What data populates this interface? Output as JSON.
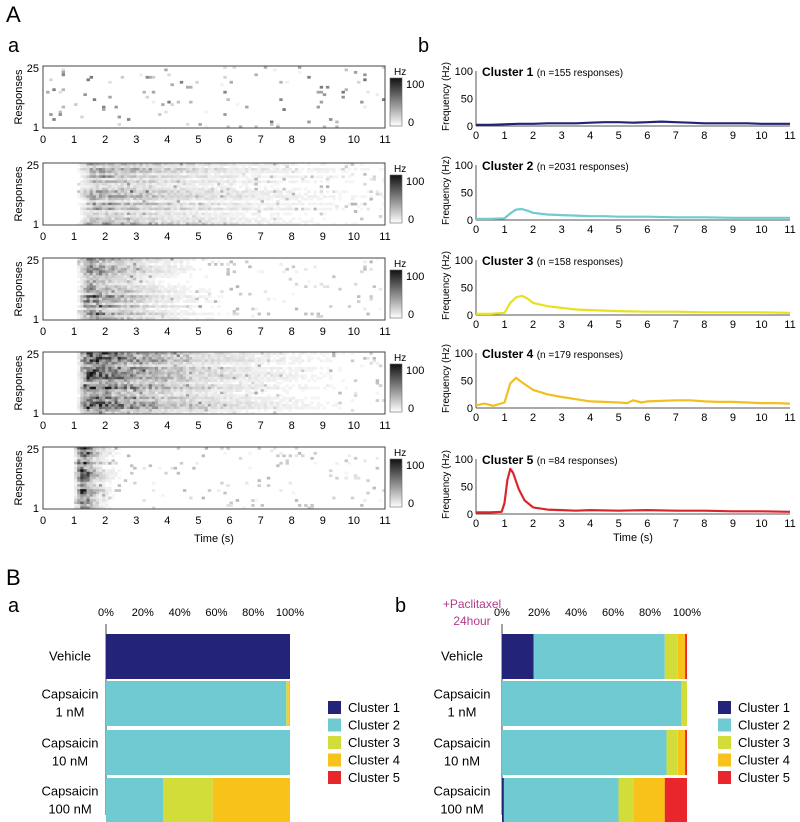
{
  "panel_labels": {
    "A": "A",
    "Aa": "a",
    "Ab": "b",
    "B": "B",
    "Ba": "a",
    "Bb": "b"
  },
  "colors": {
    "cluster1": "#23237a",
    "cluster2": "#6fcbd1",
    "cluster3": "#d3dd3a",
    "cluster4": "#f7c21a",
    "cluster5": "#e8262b",
    "line1": "#23237a",
    "line2": "#6fcbd1",
    "line3": "#e8e020",
    "line4": "#f0c020",
    "line5": "#d9262b",
    "paclitaxel_label": "#b23a8c"
  },
  "chart_data": [
    {
      "type": "heatmap",
      "panel": "Aa",
      "ylabel": "Responses",
      "xlabel": "Time (s)",
      "xlim": [
        0,
        11
      ],
      "xticks": [
        "0",
        "1",
        "2",
        "3",
        "4",
        "5",
        "6",
        "7",
        "8",
        "9",
        "10",
        "11"
      ],
      "yticks": [
        "1",
        "25"
      ],
      "colorbar": {
        "label": "Hz",
        "ticks": [
          "100",
          "0"
        ],
        "range": [
          0,
          100
        ]
      },
      "rows": 5,
      "row_profiles": [
        {
          "cluster": 1,
          "onset": 0.4,
          "peak_time": 1.5,
          "peak_hz": 12,
          "decay": 6.0
        },
        {
          "cluster": 2,
          "onset": 1.1,
          "peak_time": 1.6,
          "peak_hz": 40,
          "decay": 3.5
        },
        {
          "cluster": 3,
          "onset": 1.1,
          "peak_time": 1.5,
          "peak_hz": 70,
          "decay": 1.4
        },
        {
          "cluster": 4,
          "onset": 1.1,
          "peak_time": 1.5,
          "peak_hz": 90,
          "decay": 2.5
        },
        {
          "cluster": 5,
          "onset": 1.0,
          "peak_time": 1.3,
          "peak_hz": 100,
          "decay": 0.35
        }
      ]
    },
    {
      "type": "line",
      "panel": "Ab",
      "xlabel": "Time (s)",
      "ylabel": "Frequency (Hz)",
      "xlim": [
        0,
        11
      ],
      "ylim": [
        0,
        100
      ],
      "xticks": [
        "0",
        "1",
        "2",
        "3",
        "4",
        "5",
        "6",
        "7",
        "8",
        "9",
        "10",
        "11"
      ],
      "yticks": [
        "0",
        "50",
        "100"
      ],
      "series": [
        {
          "name": "Cluster 1",
          "n_label": "(n =155 responses)",
          "x": [
            0,
            0.5,
            1,
            1.5,
            2,
            2.5,
            3,
            3.5,
            4,
            4.5,
            5,
            5.5,
            6,
            6.5,
            7,
            7.5,
            8,
            8.5,
            9,
            9.5,
            10,
            10.5,
            11
          ],
          "y": [
            2,
            2,
            3,
            4,
            4,
            5,
            5,
            5,
            6,
            7,
            7,
            6,
            7,
            8,
            7,
            6,
            5,
            5,
            5,
            5,
            4,
            4,
            4
          ]
        },
        {
          "name": "Cluster 2",
          "n_label": "(n =2031 responses)",
          "x": [
            0,
            0.5,
            1,
            1.2,
            1.4,
            1.6,
            1.8,
            2,
            2.5,
            3,
            3.5,
            4,
            4.5,
            5,
            6,
            7,
            8,
            9,
            10,
            11
          ],
          "y": [
            2,
            2,
            3,
            12,
            19,
            20,
            17,
            13,
            10,
            9,
            8,
            7,
            7,
            6,
            6,
            5,
            5,
            4,
            4,
            4
          ]
        },
        {
          "name": "Cluster 3",
          "n_label": "(n =158 responses)",
          "x": [
            0,
            0.5,
            1,
            1.2,
            1.4,
            1.6,
            1.8,
            2,
            2.5,
            3,
            3.5,
            4,
            5,
            6,
            7,
            8,
            9,
            10,
            11
          ],
          "y": [
            2,
            2,
            4,
            22,
            32,
            35,
            30,
            22,
            16,
            13,
            10,
            9,
            7,
            6,
            6,
            5,
            5,
            5,
            4
          ]
        },
        {
          "name": "Cluster 4",
          "n_label": "(n =179 responses)",
          "x": [
            0,
            0.3,
            0.6,
            1,
            1.2,
            1.4,
            1.6,
            1.8,
            2,
            2.5,
            3,
            3.5,
            4,
            4.5,
            5,
            5.3,
            5.5,
            5.8,
            6,
            6.5,
            7,
            7.5,
            8,
            8.5,
            9,
            9.5,
            10,
            10.5,
            11
          ],
          "y": [
            5,
            8,
            4,
            10,
            45,
            55,
            47,
            40,
            33,
            25,
            20,
            16,
            12,
            11,
            10,
            9,
            14,
            10,
            12,
            13,
            14,
            14,
            12,
            11,
            11,
            10,
            9,
            9,
            8
          ]
        },
        {
          "name": "Cluster 5",
          "n_label": "(n =84 responses)",
          "x": [
            0,
            0.5,
            0.9,
            1,
            1.1,
            1.2,
            1.3,
            1.5,
            1.7,
            2,
            2.5,
            3,
            3.5,
            4,
            5,
            6,
            7,
            8,
            9,
            10,
            11
          ],
          "y": [
            3,
            3,
            4,
            20,
            62,
            82,
            75,
            45,
            25,
            12,
            8,
            7,
            6,
            7,
            6,
            7,
            6,
            6,
            5,
            5,
            4
          ]
        }
      ]
    },
    {
      "type": "bar",
      "panel": "Ba",
      "orientation": "horizontal-stacked",
      "xticks": [
        "0%",
        "20%",
        "40%",
        "60%",
        "80%",
        "100%"
      ],
      "categories": [
        [
          "Vehicle"
        ],
        [
          "Capsaicin",
          "1 nM"
        ],
        [
          "Capsaicin",
          "10 nM"
        ],
        [
          "Capsaicin",
          "100 nM"
        ]
      ],
      "series": [
        {
          "name": "Cluster 1",
          "values": [
            100,
            0,
            0,
            0
          ]
        },
        {
          "name": "Cluster 2",
          "values": [
            0,
            98,
            100,
            31
          ]
        },
        {
          "name": "Cluster 3",
          "values": [
            0,
            1,
            0,
            27
          ]
        },
        {
          "name": "Cluster 4",
          "values": [
            0,
            1,
            0,
            42
          ]
        },
        {
          "name": "Cluster 5",
          "values": [
            0,
            0,
            0,
            0
          ]
        }
      ],
      "legend": [
        "Cluster 1",
        "Cluster 2",
        "Cluster 3",
        "Cluster 4",
        "Cluster 5"
      ],
      "legend_position": "right"
    },
    {
      "type": "bar",
      "panel": "Bb",
      "orientation": "horizontal-stacked",
      "annotation": [
        "+Paclitaxel",
        "24hour"
      ],
      "xticks": [
        "0%",
        "20%",
        "40%",
        "60%",
        "80%",
        "100%"
      ],
      "categories": [
        [
          "Vehicle"
        ],
        [
          "Capsaicin",
          "1 nM"
        ],
        [
          "Capsaicin",
          "10 nM"
        ],
        [
          "Capsaicin",
          "100 nM"
        ]
      ],
      "series": [
        {
          "name": "Cluster 1",
          "values": [
            17,
            0,
            0,
            1
          ]
        },
        {
          "name": "Cluster 2",
          "values": [
            71,
            97,
            89,
            62
          ]
        },
        {
          "name": "Cluster 3",
          "values": [
            7,
            3,
            6,
            8
          ]
        },
        {
          "name": "Cluster 4",
          "values": [
            4,
            0,
            4,
            17
          ]
        },
        {
          "name": "Cluster 5",
          "values": [
            1,
            0,
            1,
            12
          ]
        }
      ],
      "legend": [
        "Cluster 1",
        "Cluster 2",
        "Cluster 3",
        "Cluster 4",
        "Cluster 5"
      ],
      "legend_position": "right"
    }
  ]
}
